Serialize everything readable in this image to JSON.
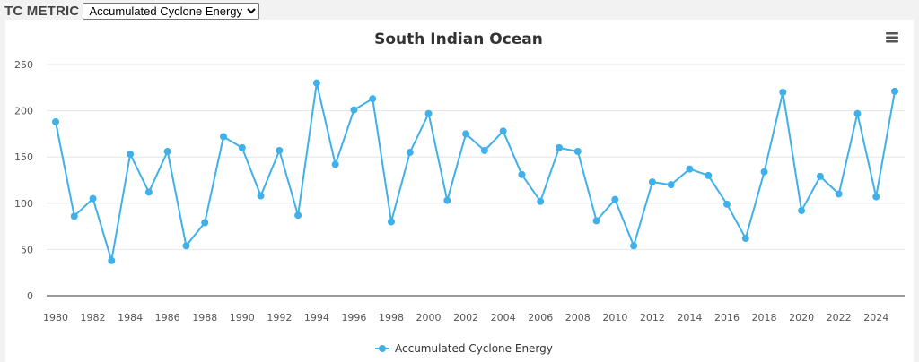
{
  "controls": {
    "metric_label": "TC METRIC",
    "metric_selected": "Accumulated Cyclone Energy"
  },
  "chart_data": {
    "type": "line",
    "title": "South Indian Ocean",
    "xlabel": "",
    "ylabel": "",
    "ylim": [
      0,
      250
    ],
    "yticks": [
      0,
      50,
      100,
      150,
      200,
      250
    ],
    "xticks": [
      1980,
      1982,
      1984,
      1986,
      1988,
      1990,
      1992,
      1994,
      1996,
      1998,
      2000,
      2002,
      2004,
      2006,
      2008,
      2010,
      2012,
      2014,
      2016,
      2018,
      2020,
      2022,
      2024
    ],
    "xlim": [
      1980,
      2025
    ],
    "grid": true,
    "legend_position": "bottom-center",
    "color": "#3fb0ea",
    "series": [
      {
        "name": "Accumulated Cyclone Energy",
        "x": [
          1980,
          1981,
          1982,
          1983,
          1984,
          1985,
          1986,
          1987,
          1988,
          1989,
          1990,
          1991,
          1992,
          1993,
          1994,
          1995,
          1996,
          1997,
          1998,
          1999,
          2000,
          2001,
          2002,
          2003,
          2004,
          2005,
          2006,
          2007,
          2008,
          2009,
          2010,
          2011,
          2012,
          2013,
          2014,
          2015,
          2016,
          2017,
          2018,
          2019,
          2020,
          2021,
          2022,
          2023,
          2024,
          2025
        ],
        "values": [
          188,
          86,
          105,
          38,
          153,
          112,
          156,
          54,
          79,
          172,
          160,
          108,
          157,
          87,
          230,
          142,
          201,
          213,
          80,
          155,
          197,
          103,
          175,
          157,
          178,
          131,
          102,
          160,
          156,
          81,
          104,
          54,
          123,
          120,
          137,
          130,
          99,
          62,
          134,
          220,
          92,
          129,
          110,
          197,
          107,
          221
        ]
      }
    ]
  }
}
